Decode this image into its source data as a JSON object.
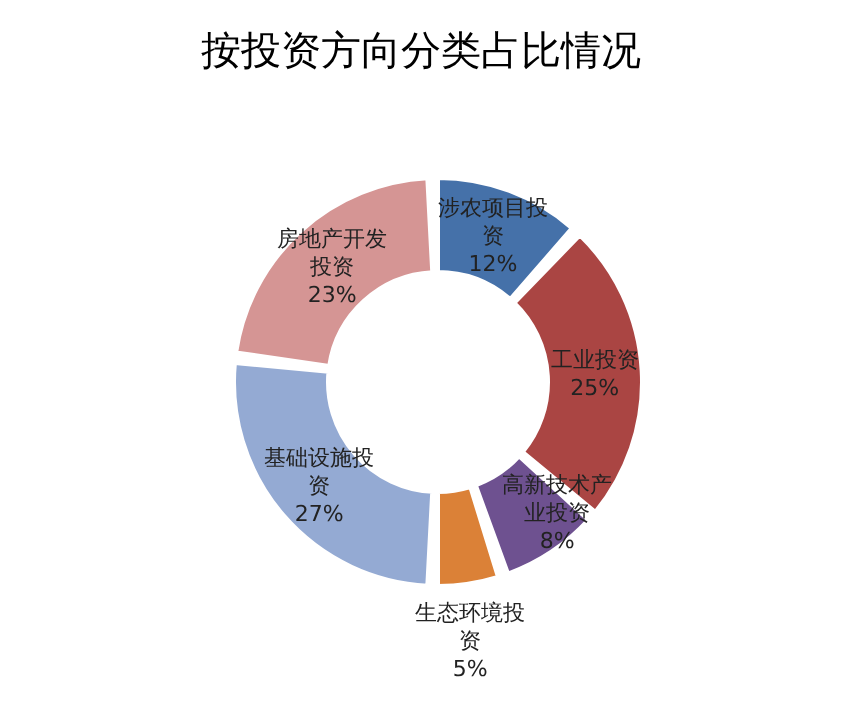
{
  "chart_data": {
    "type": "donut",
    "title": "按投资方向分类占比情况",
    "categories": [
      "涉农项目投资",
      "工业投资",
      "高新技术产业投资",
      "生态环境投资",
      "基础设施投资",
      "房地产开发投资"
    ],
    "values": [
      12,
      25,
      8,
      5,
      27,
      23
    ],
    "value_labels": [
      "12%",
      "25%",
      "8%",
      "5%",
      "27%",
      "23%"
    ],
    "colors": [
      "#4571a9",
      "#aa4543",
      "#6e5190",
      "#db8137",
      "#94aad3",
      "#d59594"
    ],
    "legend": false
  }
}
